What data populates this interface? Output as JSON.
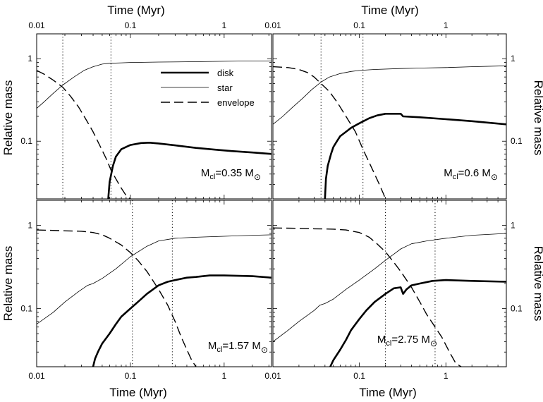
{
  "figure": {
    "xlabel": "Time (Myr)",
    "ylabel": "Relative mass"
  },
  "legend": [
    {
      "label": "disk",
      "style": "thick"
    },
    {
      "label": "star",
      "style": "thin"
    },
    {
      "label": "envelope",
      "style": "dashed"
    }
  ],
  "chart_data": [
    {
      "type": "line",
      "panel": "top-left",
      "xscale": "log",
      "yscale": "log",
      "xlim": [
        0.01,
        3.2
      ],
      "ylim": [
        0.02,
        2.0
      ],
      "xticks": [
        "0.01",
        "0.1",
        "1"
      ],
      "yticks": [
        "0.1",
        "1"
      ],
      "annotation": {
        "main": "M",
        "sub": "cl",
        "value": "=0.35 M",
        "sun": "⊙"
      },
      "vlines": [
        0.019,
        0.062
      ],
      "series": [
        {
          "name": "disk",
          "x": [
            0.058,
            0.06,
            0.065,
            0.07,
            0.08,
            0.1,
            0.13,
            0.16,
            0.2,
            0.3,
            0.5,
            0.8,
            1.2,
            2.0,
            3.2
          ],
          "y": [
            0.02,
            0.032,
            0.05,
            0.065,
            0.08,
            0.09,
            0.095,
            0.096,
            0.094,
            0.089,
            0.083,
            0.079,
            0.076,
            0.073,
            0.07
          ]
        },
        {
          "name": "star",
          "x": [
            0.01,
            0.012,
            0.015,
            0.019,
            0.025,
            0.032,
            0.04,
            0.05,
            0.06,
            0.08,
            0.1,
            0.2,
            0.5,
            1,
            2,
            3.2
          ],
          "y": [
            0.25,
            0.3,
            0.38,
            0.48,
            0.6,
            0.72,
            0.8,
            0.86,
            0.88,
            0.89,
            0.9,
            0.91,
            0.92,
            0.93,
            0.94,
            0.94
          ]
        },
        {
          "name": "envelope",
          "x": [
            0.01,
            0.012,
            0.015,
            0.019,
            0.023,
            0.028,
            0.033,
            0.04,
            0.048,
            0.055,
            0.062,
            0.07,
            0.08,
            0.09,
            0.1
          ],
          "y": [
            0.72,
            0.65,
            0.55,
            0.45,
            0.35,
            0.26,
            0.19,
            0.13,
            0.085,
            0.062,
            0.045,
            0.035,
            0.027,
            0.022,
            0.02
          ]
        }
      ]
    },
    {
      "type": "line",
      "panel": "top-right",
      "xscale": "log",
      "yscale": "log",
      "xlim": [
        0.01,
        5.0
      ],
      "ylim": [
        0.02,
        2.0
      ],
      "xticks": [
        "0.01",
        "0.1",
        "1"
      ],
      "yticks": [
        "0.1",
        "1"
      ],
      "annotation": {
        "main": "M",
        "sub": "cl",
        "value": "=0.6 M",
        "sun": "⊙"
      },
      "vlines": [
        0.036,
        0.11
      ],
      "series": [
        {
          "name": "disk",
          "x": [
            0.04,
            0.041,
            0.043,
            0.047,
            0.05,
            0.055,
            0.06,
            0.07,
            0.08,
            0.1,
            0.13,
            0.16,
            0.2,
            0.3,
            0.32,
            0.5,
            1,
            2,
            5
          ],
          "y": [
            0.02,
            0.035,
            0.05,
            0.07,
            0.085,
            0.1,
            0.115,
            0.13,
            0.145,
            0.165,
            0.19,
            0.205,
            0.215,
            0.215,
            0.2,
            0.195,
            0.185,
            0.175,
            0.16
          ]
        },
        {
          "name": "star",
          "x": [
            0.01,
            0.013,
            0.017,
            0.022,
            0.028,
            0.036,
            0.045,
            0.06,
            0.08,
            0.1,
            0.15,
            0.3,
            0.5,
            1,
            2,
            5
          ],
          "y": [
            0.16,
            0.2,
            0.26,
            0.33,
            0.42,
            0.52,
            0.6,
            0.66,
            0.7,
            0.72,
            0.74,
            0.76,
            0.77,
            0.78,
            0.8,
            0.82
          ]
        },
        {
          "name": "envelope",
          "x": [
            0.01,
            0.015,
            0.02,
            0.025,
            0.03,
            0.036,
            0.045,
            0.055,
            0.07,
            0.09,
            0.11,
            0.13,
            0.15,
            0.17,
            0.19,
            0.2
          ],
          "y": [
            0.8,
            0.78,
            0.74,
            0.68,
            0.6,
            0.5,
            0.4,
            0.3,
            0.2,
            0.13,
            0.08,
            0.055,
            0.04,
            0.03,
            0.023,
            0.02
          ]
        }
      ]
    },
    {
      "type": "line",
      "panel": "bottom-left",
      "xscale": "log",
      "yscale": "log",
      "xlim": [
        0.01,
        3.2
      ],
      "ylim": [
        0.02,
        2.0
      ],
      "xticks": [
        "0.01",
        "0.1",
        "1"
      ],
      "yticks": [
        "0.1",
        "1"
      ],
      "annotation": {
        "main": "M",
        "sub": "cl",
        "value": "=1.57 M",
        "sun": "⊙"
      },
      "vlines": [
        0.105,
        0.28
      ],
      "series": [
        {
          "name": "disk",
          "x": [
            0.04,
            0.042,
            0.045,
            0.05,
            0.06,
            0.07,
            0.08,
            0.1,
            0.12,
            0.15,
            0.2,
            0.25,
            0.3,
            0.4,
            0.5,
            0.7,
            1,
            2,
            3.2
          ],
          "y": [
            0.02,
            0.025,
            0.03,
            0.038,
            0.05,
            0.065,
            0.08,
            0.1,
            0.12,
            0.15,
            0.19,
            0.21,
            0.22,
            0.235,
            0.24,
            0.25,
            0.25,
            0.245,
            0.235
          ]
        },
        {
          "name": "star",
          "x": [
            0.01,
            0.015,
            0.02,
            0.028,
            0.035,
            0.04,
            0.05,
            0.07,
            0.1,
            0.15,
            0.2,
            0.3,
            0.5,
            1,
            2,
            3.2
          ],
          "y": [
            0.065,
            0.09,
            0.12,
            0.16,
            0.19,
            0.2,
            0.23,
            0.3,
            0.42,
            0.56,
            0.65,
            0.7,
            0.72,
            0.74,
            0.76,
            0.77
          ]
        },
        {
          "name": "envelope",
          "x": [
            0.01,
            0.015,
            0.02,
            0.03,
            0.04,
            0.05,
            0.06,
            0.08,
            0.1,
            0.12,
            0.15,
            0.2,
            0.25,
            0.3,
            0.35,
            0.4,
            0.45,
            0.5
          ],
          "y": [
            0.88,
            0.87,
            0.86,
            0.85,
            0.82,
            0.77,
            0.7,
            0.58,
            0.47,
            0.38,
            0.28,
            0.17,
            0.11,
            0.07,
            0.045,
            0.032,
            0.024,
            0.02
          ]
        }
      ]
    },
    {
      "type": "line",
      "panel": "bottom-right",
      "xscale": "log",
      "yscale": "log",
      "xlim": [
        0.01,
        5.0
      ],
      "ylim": [
        0.02,
        2.0
      ],
      "xticks": [
        "0.01",
        "0.1",
        "1"
      ],
      "yticks": [
        "0.1",
        "1"
      ],
      "annotation": {
        "main": "M",
        "sub": "cl",
        "value": "=2.75 M",
        "sun": "⊙"
      },
      "vlines": [
        0.2,
        0.75
      ],
      "series": [
        {
          "name": "disk",
          "x": [
            0.046,
            0.05,
            0.06,
            0.07,
            0.08,
            0.1,
            0.12,
            0.15,
            0.2,
            0.25,
            0.3,
            0.32,
            0.35,
            0.4,
            0.5,
            0.7,
            1,
            2,
            5
          ],
          "y": [
            0.02,
            0.024,
            0.032,
            0.042,
            0.055,
            0.075,
            0.095,
            0.12,
            0.15,
            0.175,
            0.18,
            0.15,
            0.17,
            0.19,
            0.2,
            0.215,
            0.22,
            0.215,
            0.21
          ]
        },
        {
          "name": "star",
          "x": [
            0.01,
            0.015,
            0.02,
            0.03,
            0.035,
            0.04,
            0.05,
            0.07,
            0.1,
            0.15,
            0.2,
            0.25,
            0.3,
            0.4,
            0.6,
            1,
            2,
            5
          ],
          "y": [
            0.04,
            0.055,
            0.07,
            0.095,
            0.11,
            0.115,
            0.13,
            0.17,
            0.22,
            0.3,
            0.38,
            0.45,
            0.52,
            0.6,
            0.65,
            0.7,
            0.76,
            0.8
          ]
        },
        {
          "name": "envelope",
          "x": [
            0.01,
            0.02,
            0.03,
            0.05,
            0.07,
            0.1,
            0.13,
            0.16,
            0.2,
            0.25,
            0.3,
            0.4,
            0.5,
            0.6,
            0.75,
            0.9,
            1.1,
            1.3,
            1.5
          ],
          "y": [
            0.93,
            0.92,
            0.91,
            0.9,
            0.88,
            0.82,
            0.72,
            0.6,
            0.48,
            0.36,
            0.28,
            0.18,
            0.12,
            0.085,
            0.06,
            0.045,
            0.03,
            0.022,
            0.02
          ]
        }
      ]
    }
  ]
}
